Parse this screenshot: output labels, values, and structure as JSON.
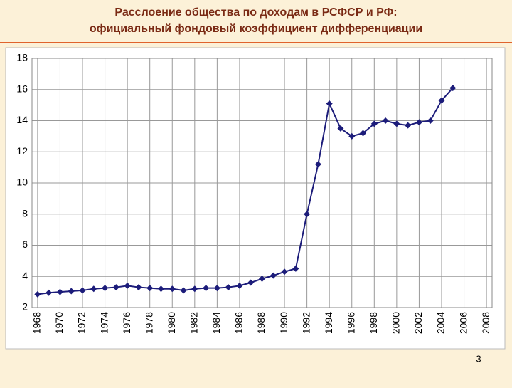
{
  "chart_data": {
    "type": "line",
    "title": "Расслоение общества по доходам в РСФСР и РФ:",
    "subtitle": "официальный фондовый коэффициент дифференциации",
    "x": [
      1968,
      1969,
      1970,
      1971,
      1972,
      1973,
      1974,
      1975,
      1976,
      1977,
      1978,
      1979,
      1980,
      1981,
      1982,
      1983,
      1984,
      1985,
      1986,
      1987,
      1988,
      1989,
      1990,
      1991,
      1992,
      1993,
      1994,
      1995,
      1996,
      1997,
      1998,
      1999,
      2000,
      2001,
      2002,
      2003,
      2004,
      2005
    ],
    "series": [
      {
        "color": "#1c1c7a",
        "values": [
          2.85,
          2.95,
          3.0,
          3.05,
          3.1,
          3.2,
          3.25,
          3.3,
          3.4,
          3.3,
          3.25,
          3.2,
          3.2,
          3.1,
          3.2,
          3.25,
          3.25,
          3.3,
          3.4,
          3.6,
          3.85,
          4.05,
          4.3,
          4.5,
          8.0,
          11.2,
          15.1,
          13.5,
          13.0,
          13.2,
          13.8,
          14.0,
          13.8,
          13.7,
          13.9,
          14.0,
          15.3,
          16.1
        ]
      }
    ],
    "xlim": [
      1967.5,
      2008.5
    ],
    "xticks": [
      1968,
      1970,
      1972,
      1974,
      1976,
      1978,
      1980,
      1982,
      1984,
      1986,
      1988,
      1990,
      1992,
      1994,
      1996,
      1998,
      2000,
      2002,
      2004,
      2006,
      2008
    ],
    "ylim": [
      2,
      18
    ],
    "yticks": [
      2,
      4,
      6,
      8,
      10,
      12,
      14,
      16,
      18
    ],
    "grid": true
  },
  "page_number": "3"
}
